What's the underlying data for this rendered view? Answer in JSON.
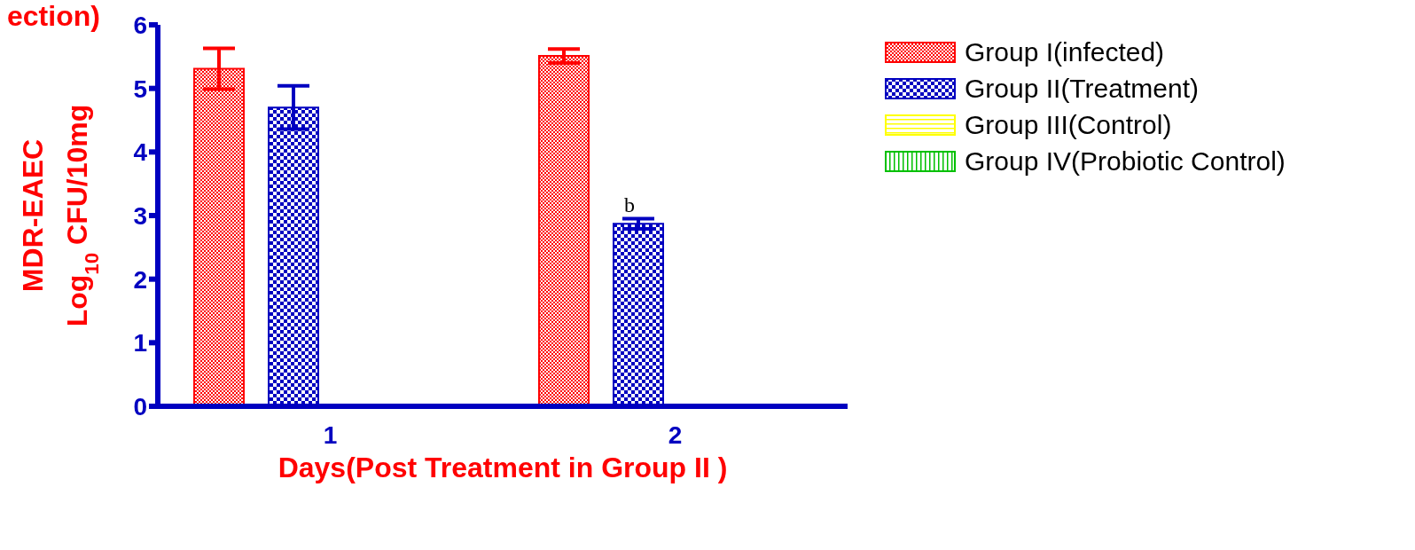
{
  "chart_data": {
    "type": "bar",
    "title": "ection)",
    "xlabel": "Days(Post Treatment in Group II )",
    "ylabel": "MDR-EAEC\nLog$_{10}$ CFU/10mg",
    "categories": [
      "1",
      "2"
    ],
    "series": [
      {
        "name": "Group I(infected)",
        "color": "#ff0000",
        "values": [
          5.31,
          5.51
        ],
        "errors": [
          0.32,
          0.11
        ]
      },
      {
        "name": "Group II(Treatment)",
        "color": "#0000c0",
        "values": [
          4.7,
          2.87
        ],
        "errors": [
          0.34,
          0.08
        ]
      },
      {
        "name": "Group III(Control)",
        "color": "#ffff00",
        "values": [
          null,
          null
        ]
      },
      {
        "name": "Group IV(Probiotic Control)",
        "color": "#00c000",
        "values": [
          null,
          null
        ]
      }
    ],
    "ylim": [
      0,
      6
    ],
    "yticks": [
      0,
      1,
      2,
      3,
      4,
      5,
      6
    ],
    "grid": false,
    "legend": "top right",
    "annotations": [
      "b"
    ]
  }
}
